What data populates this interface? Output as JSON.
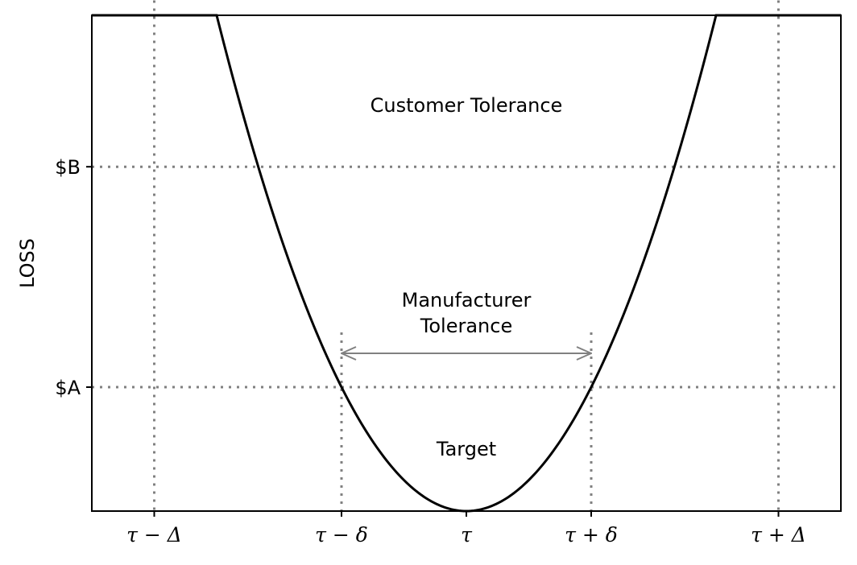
{
  "chart_data": {
    "type": "line",
    "title": "",
    "xlabel": "",
    "ylabel": "LOSS",
    "xlim": [
      -3,
      3
    ],
    "ylim": [
      0,
      4
    ],
    "target_x": 0,
    "delta_small": 1.0,
    "delta_large": 2.5,
    "value_A": 1.0,
    "value_B": 2.778,
    "y_ticks": [
      {
        "label": "$A",
        "value": 1.0
      },
      {
        "label": "$B",
        "value": 2.778
      }
    ],
    "x_ticks": [
      {
        "label": "τ − Δ",
        "value": -2.5
      },
      {
        "label": "τ − δ",
        "value": -1.0
      },
      {
        "label": "τ",
        "value": 0
      },
      {
        "label": "τ + δ",
        "value": 1.0
      },
      {
        "label": "τ + Δ",
        "value": 2.5
      }
    ],
    "annotations": {
      "customer_tolerance": "Customer Tolerance",
      "manufacturer_tolerance_line1": "Manufacturer",
      "manufacturer_tolerance_line2": "Tolerance",
      "target": "Target"
    },
    "colors": {
      "curve": "#000000",
      "guides": "#808080",
      "arrows": "#808080"
    }
  }
}
